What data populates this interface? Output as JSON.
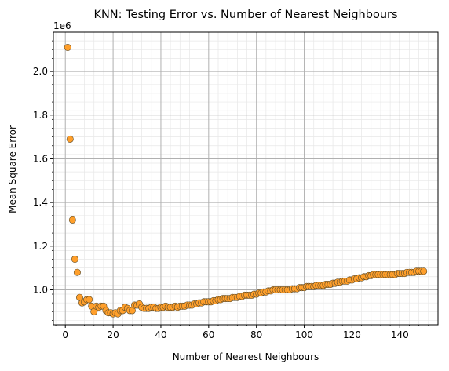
{
  "chart_data": {
    "type": "scatter",
    "title": "KNN: Testing Error vs. Number of Nearest Neighbours",
    "xlabel": "Number of Nearest Neighbours",
    "ylabel": "Mean Square Error",
    "y_offset_label": "1e6",
    "xlim": [
      -5,
      156
    ],
    "ylim": [
      0.84,
      2.18
    ],
    "xticks": [
      0,
      20,
      40,
      60,
      80,
      100,
      120,
      140
    ],
    "yticks": [
      1.0,
      1.2,
      1.4,
      1.6,
      1.8,
      2.0
    ],
    "xtick_labels": [
      "0",
      "20",
      "40",
      "60",
      "80",
      "100",
      "120",
      "140"
    ],
    "ytick_labels": [
      "1.0",
      "1.2",
      "1.4",
      "1.6",
      "1.8",
      "2.0"
    ],
    "grid": true,
    "minor_grid": true,
    "marker_color": "#ff9f2b",
    "marker_edge_color": "#5a4a2a",
    "x": [
      1,
      2,
      3,
      4,
      5,
      6,
      7,
      8,
      9,
      10,
      11,
      12,
      13,
      14,
      15,
      16,
      17,
      18,
      19,
      20,
      21,
      22,
      23,
      24,
      25,
      26,
      27,
      28,
      29,
      30,
      31,
      32,
      33,
      34,
      35,
      36,
      37,
      38,
      39,
      40,
      41,
      42,
      43,
      44,
      45,
      46,
      47,
      48,
      49,
      50,
      51,
      52,
      53,
      54,
      55,
      56,
      57,
      58,
      59,
      60,
      61,
      62,
      63,
      64,
      65,
      66,
      67,
      68,
      69,
      70,
      71,
      72,
      73,
      74,
      75,
      76,
      77,
      78,
      79,
      80,
      81,
      82,
      83,
      84,
      85,
      86,
      87,
      88,
      89,
      90,
      91,
      92,
      93,
      94,
      95,
      96,
      97,
      98,
      99,
      100,
      101,
      102,
      103,
      104,
      105,
      106,
      107,
      108,
      109,
      110,
      111,
      112,
      113,
      114,
      115,
      116,
      117,
      118,
      119,
      120,
      121,
      122,
      123,
      124,
      125,
      126,
      127,
      128,
      129,
      130,
      131,
      132,
      133,
      134,
      135,
      136,
      137,
      138,
      139,
      140,
      141,
      142,
      143,
      144,
      145,
      146,
      147,
      148,
      149,
      150
    ],
    "y": [
      2.11,
      1.69,
      1.32,
      1.14,
      1.08,
      0.965,
      0.94,
      0.945,
      0.955,
      0.955,
      0.925,
      0.9,
      0.925,
      0.92,
      0.925,
      0.925,
      0.905,
      0.895,
      0.895,
      0.89,
      0.895,
      0.89,
      0.905,
      0.905,
      0.92,
      0.915,
      0.905,
      0.905,
      0.93,
      0.93,
      0.935,
      0.92,
      0.915,
      0.915,
      0.915,
      0.92,
      0.92,
      0.915,
      0.915,
      0.92,
      0.92,
      0.925,
      0.92,
      0.92,
      0.92,
      0.925,
      0.92,
      0.925,
      0.925,
      0.925,
      0.93,
      0.93,
      0.93,
      0.935,
      0.935,
      0.94,
      0.94,
      0.945,
      0.945,
      0.945,
      0.945,
      0.95,
      0.95,
      0.955,
      0.955,
      0.96,
      0.96,
      0.96,
      0.96,
      0.965,
      0.965,
      0.965,
      0.97,
      0.97,
      0.975,
      0.975,
      0.975,
      0.975,
      0.98,
      0.98,
      0.985,
      0.985,
      0.99,
      0.99,
      0.995,
      0.995,
      1.0,
      1.0,
      1.0,
      1.0,
      1.0,
      1.0,
      1.0,
      1.0,
      1.005,
      1.005,
      1.005,
      1.01,
      1.01,
      1.01,
      1.015,
      1.015,
      1.015,
      1.015,
      1.02,
      1.02,
      1.02,
      1.02,
      1.025,
      1.025,
      1.025,
      1.03,
      1.03,
      1.035,
      1.035,
      1.04,
      1.04,
      1.04,
      1.045,
      1.045,
      1.05,
      1.05,
      1.055,
      1.055,
      1.06,
      1.06,
      1.065,
      1.065,
      1.07,
      1.07,
      1.07,
      1.07,
      1.07,
      1.07,
      1.07,
      1.07,
      1.07,
      1.07,
      1.075,
      1.075,
      1.075,
      1.075,
      1.08,
      1.08,
      1.08,
      1.08,
      1.085,
      1.085,
      1.085,
      1.085
    ]
  }
}
